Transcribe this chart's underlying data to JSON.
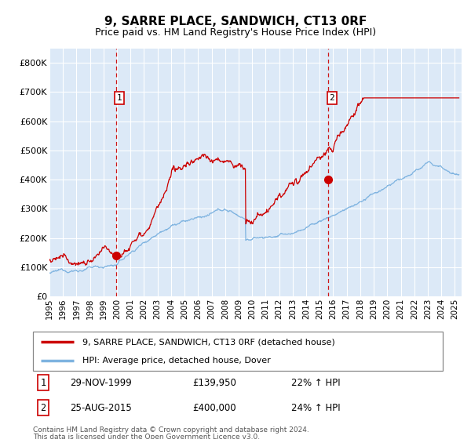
{
  "title": "9, SARRE PLACE, SANDWICH, CT13 0RF",
  "subtitle": "Price paid vs. HM Land Registry's House Price Index (HPI)",
  "background_color": "#ffffff",
  "plot_bg_color": "#dce9f7",
  "grid_color": "#ffffff",
  "ylim": [
    0,
    850000
  ],
  "xlim_start": 1995.0,
  "xlim_end": 2025.5,
  "yticks": [
    0,
    100000,
    200000,
    300000,
    400000,
    500000,
    600000,
    700000,
    800000
  ],
  "ytick_labels": [
    "£0",
    "£100K",
    "£200K",
    "£300K",
    "£400K",
    "£500K",
    "£600K",
    "£700K",
    "£800K"
  ],
  "hpi_line_color": "#7eb3e0",
  "price_line_color": "#cc0000",
  "marker_color": "#cc0000",
  "vline_color": "#cc0000",
  "sale1_x": 1999.91,
  "sale1_y": 139950,
  "sale1_label": "1",
  "sale1_date": "29-NOV-1999",
  "sale1_price": "£139,950",
  "sale1_hpi": "22% ↑ HPI",
  "sale2_x": 2015.65,
  "sale2_y": 400000,
  "sale2_label": "2",
  "sale2_date": "25-AUG-2015",
  "sale2_price": "£400,000",
  "sale2_hpi": "24% ↑ HPI",
  "legend_line1": "9, SARRE PLACE, SANDWICH, CT13 0RF (detached house)",
  "legend_line2": "HPI: Average price, detached house, Dover",
  "footer_line1": "Contains HM Land Registry data © Crown copyright and database right 2024.",
  "footer_line2": "This data is licensed under the Open Government Licence v3.0."
}
